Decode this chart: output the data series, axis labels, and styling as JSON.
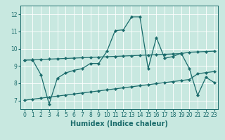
{
  "xlabel": "Humidex (Indice chaleur)",
  "xlim": [
    -0.5,
    23.5
  ],
  "ylim": [
    6.5,
    12.5
  ],
  "xticks": [
    0,
    1,
    2,
    3,
    4,
    5,
    6,
    7,
    8,
    9,
    10,
    11,
    12,
    13,
    14,
    15,
    16,
    17,
    18,
    19,
    20,
    21,
    22,
    23
  ],
  "yticks": [
    7,
    8,
    9,
    10,
    11,
    12
  ],
  "bg_color": "#c8e8e0",
  "line_color": "#1a6b6b",
  "grid_color": "#ffffff",
  "zigzag_x": [
    0,
    1,
    2,
    3,
    4,
    5,
    6,
    7,
    8,
    9,
    10,
    11,
    12,
    13,
    14,
    15,
    16,
    17,
    18,
    19,
    20,
    21,
    22,
    23
  ],
  "zigzag_y": [
    9.35,
    9.35,
    8.5,
    6.8,
    8.3,
    8.6,
    8.75,
    8.85,
    9.15,
    9.15,
    9.85,
    11.05,
    11.1,
    11.85,
    11.85,
    8.85,
    10.65,
    9.45,
    9.55,
    9.75,
    8.85,
    7.3,
    8.35,
    8.05
  ],
  "upper_x": [
    0,
    1,
    2,
    3,
    4,
    5,
    6,
    7,
    8,
    9,
    10,
    11,
    12,
    13,
    14,
    15,
    16,
    17,
    18,
    19,
    20,
    21,
    22,
    23
  ],
  "upper_y": [
    9.35,
    9.36,
    9.38,
    9.4,
    9.42,
    9.44,
    9.46,
    9.48,
    9.5,
    9.52,
    9.54,
    9.56,
    9.58,
    9.6,
    9.62,
    9.64,
    9.66,
    9.68,
    9.7,
    9.72,
    9.8,
    9.82,
    9.84,
    9.86
  ],
  "lower_x": [
    0,
    1,
    2,
    3,
    4,
    5,
    6,
    7,
    8,
    9,
    10,
    11,
    12,
    13,
    14,
    15,
    16,
    17,
    18,
    19,
    20,
    21,
    22,
    23
  ],
  "lower_y": [
    7.02,
    7.08,
    7.14,
    7.2,
    7.26,
    7.32,
    7.38,
    7.44,
    7.5,
    7.56,
    7.62,
    7.68,
    7.74,
    7.8,
    7.86,
    7.92,
    7.98,
    8.04,
    8.1,
    8.16,
    8.22,
    8.55,
    8.62,
    8.68
  ],
  "marker": "D",
  "markersize": 2.2,
  "linewidth": 0.9,
  "xlabel_fontsize": 7,
  "tick_fontsize": 5.5
}
